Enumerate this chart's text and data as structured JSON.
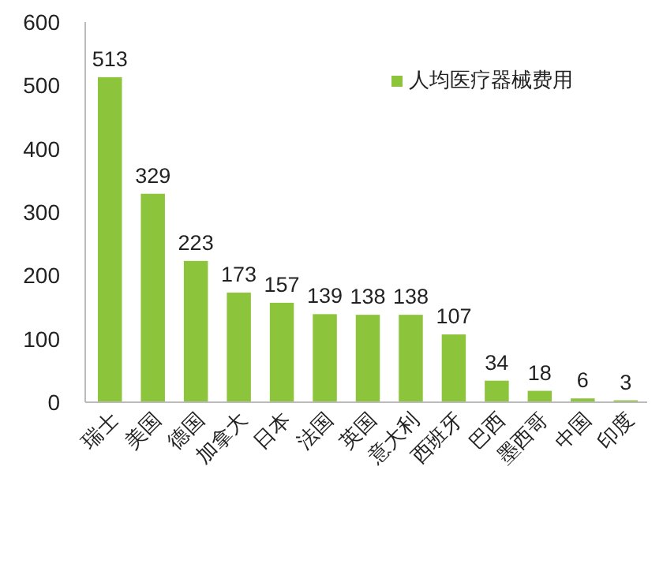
{
  "chart_data": {
    "type": "bar",
    "categories": [
      "瑞士",
      "美国",
      "德国",
      "加拿大",
      "日本",
      "法国",
      "英国",
      "意大利",
      "西班牙",
      "巴西",
      "墨西哥",
      "中国",
      "印度"
    ],
    "series": [
      {
        "name": "人均医疗器械费用",
        "color": "#8cc43c",
        "values": [
          513,
          329,
          223,
          173,
          157,
          139,
          138,
          138,
          107,
          34,
          18,
          6,
          3
        ]
      }
    ],
    "ylim": [
      0,
      600
    ],
    "yticks": [
      0,
      100,
      200,
      300,
      400,
      500,
      600
    ],
    "data_labels": true,
    "legend": "top right",
    "grid": false
  }
}
